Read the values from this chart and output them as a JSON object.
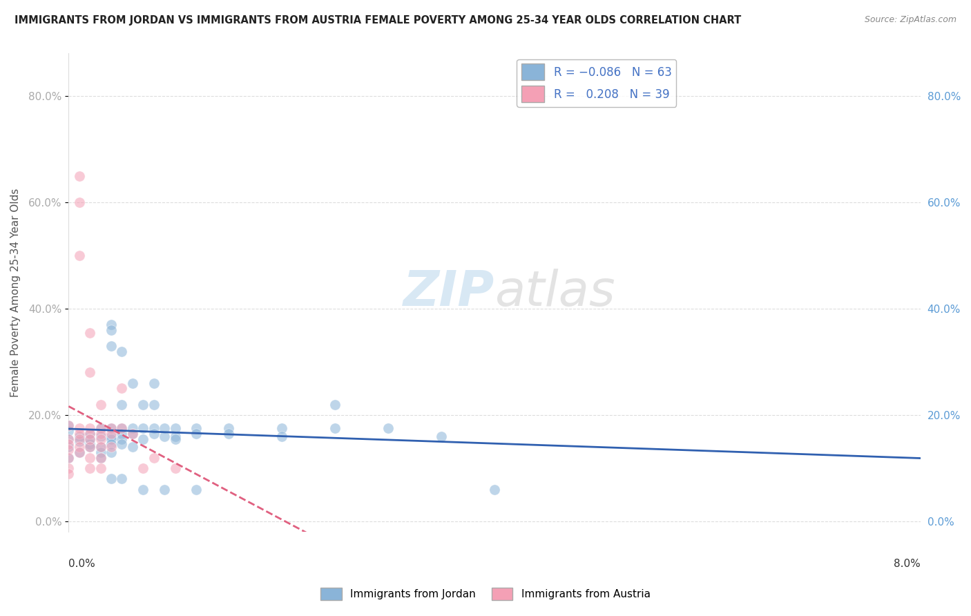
{
  "title": "IMMIGRANTS FROM JORDAN VS IMMIGRANTS FROM AUSTRIA FEMALE POVERTY AMONG 25-34 YEAR OLDS CORRELATION CHART",
  "source": "Source: ZipAtlas.com",
  "ylabel": "Female Poverty Among 25-34 Year Olds",
  "xlim": [
    0.0,
    8.0
  ],
  "ylim": [
    -2.0,
    88.0
  ],
  "yticks": [
    0.0,
    20.0,
    40.0,
    60.0,
    80.0
  ],
  "ytick_labels": [
    "0.0%",
    "20.0%",
    "40.0%",
    "60.0%",
    "80.0%"
  ],
  "xtick_left": "0.0%",
  "xtick_right": "8.0%",
  "watermark_zip": "ZIP",
  "watermark_atlas": "atlas",
  "jordan_color": "#8ab4d8",
  "austria_color": "#f4a0b5",
  "jordan_line_color": "#3060b0",
  "austria_line_color": "#e06080",
  "jordan_points": [
    [
      0.0,
      15.5
    ],
    [
      0.0,
      14.0
    ],
    [
      0.0,
      17.0
    ],
    [
      0.0,
      18.0
    ],
    [
      0.0,
      12.0
    ],
    [
      0.1,
      16.0
    ],
    [
      0.1,
      15.0
    ],
    [
      0.1,
      13.0
    ],
    [
      0.2,
      16.5
    ],
    [
      0.2,
      14.5
    ],
    [
      0.2,
      14.0
    ],
    [
      0.2,
      15.5
    ],
    [
      0.3,
      17.5
    ],
    [
      0.3,
      16.0
    ],
    [
      0.3,
      14.0
    ],
    [
      0.3,
      13.0
    ],
    [
      0.3,
      12.0
    ],
    [
      0.4,
      37.0
    ],
    [
      0.4,
      36.0
    ],
    [
      0.4,
      33.0
    ],
    [
      0.4,
      17.5
    ],
    [
      0.4,
      16.0
    ],
    [
      0.4,
      15.5
    ],
    [
      0.4,
      14.5
    ],
    [
      0.4,
      13.0
    ],
    [
      0.4,
      8.0
    ],
    [
      0.5,
      32.0
    ],
    [
      0.5,
      22.0
    ],
    [
      0.5,
      17.5
    ],
    [
      0.5,
      16.5
    ],
    [
      0.5,
      15.5
    ],
    [
      0.5,
      14.5
    ],
    [
      0.5,
      8.0
    ],
    [
      0.6,
      26.0
    ],
    [
      0.6,
      17.5
    ],
    [
      0.6,
      16.5
    ],
    [
      0.6,
      14.0
    ],
    [
      0.7,
      22.0
    ],
    [
      0.7,
      17.5
    ],
    [
      0.7,
      15.5
    ],
    [
      0.7,
      6.0
    ],
    [
      0.8,
      26.0
    ],
    [
      0.8,
      22.0
    ],
    [
      0.8,
      17.5
    ],
    [
      0.8,
      16.5
    ],
    [
      0.9,
      17.5
    ],
    [
      0.9,
      16.0
    ],
    [
      0.9,
      6.0
    ],
    [
      1.0,
      17.5
    ],
    [
      1.0,
      16.0
    ],
    [
      1.0,
      15.5
    ],
    [
      1.2,
      17.5
    ],
    [
      1.2,
      16.5
    ],
    [
      1.2,
      6.0
    ],
    [
      1.5,
      17.5
    ],
    [
      1.5,
      16.5
    ],
    [
      2.0,
      17.5
    ],
    [
      2.0,
      16.0
    ],
    [
      2.5,
      22.0
    ],
    [
      2.5,
      17.5
    ],
    [
      3.0,
      17.5
    ],
    [
      3.5,
      16.0
    ],
    [
      4.0,
      6.0
    ]
  ],
  "austria_points": [
    [
      0.0,
      18.0
    ],
    [
      0.0,
      15.5
    ],
    [
      0.0,
      14.5
    ],
    [
      0.0,
      13.5
    ],
    [
      0.0,
      12.0
    ],
    [
      0.0,
      10.0
    ],
    [
      0.0,
      9.0
    ],
    [
      0.1,
      65.0
    ],
    [
      0.1,
      60.0
    ],
    [
      0.1,
      50.0
    ],
    [
      0.1,
      17.5
    ],
    [
      0.1,
      16.5
    ],
    [
      0.1,
      15.5
    ],
    [
      0.1,
      14.0
    ],
    [
      0.1,
      13.0
    ],
    [
      0.2,
      35.5
    ],
    [
      0.2,
      28.0
    ],
    [
      0.2,
      17.5
    ],
    [
      0.2,
      16.5
    ],
    [
      0.2,
      15.5
    ],
    [
      0.2,
      14.0
    ],
    [
      0.2,
      12.0
    ],
    [
      0.2,
      10.0
    ],
    [
      0.3,
      22.0
    ],
    [
      0.3,
      17.5
    ],
    [
      0.3,
      16.5
    ],
    [
      0.3,
      15.5
    ],
    [
      0.3,
      14.0
    ],
    [
      0.3,
      12.0
    ],
    [
      0.3,
      10.0
    ],
    [
      0.4,
      17.5
    ],
    [
      0.4,
      16.5
    ],
    [
      0.4,
      14.0
    ],
    [
      0.5,
      25.0
    ],
    [
      0.5,
      17.5
    ],
    [
      0.6,
      16.5
    ],
    [
      0.7,
      10.0
    ],
    [
      0.8,
      12.0
    ],
    [
      1.0,
      10.0
    ]
  ]
}
